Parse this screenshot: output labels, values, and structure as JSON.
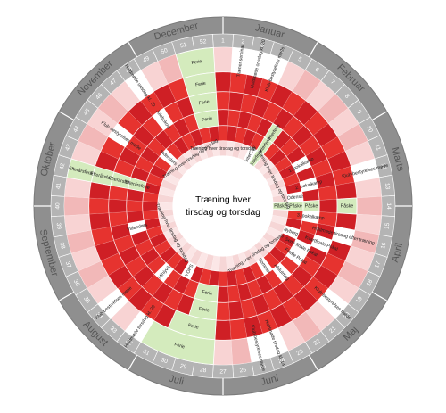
{
  "center_text": [
    "Træning hver",
    "tirsdag og torsdag"
  ],
  "months": [
    "Januar",
    "Februar",
    "Marts",
    "April",
    "Maj",
    "Juni",
    "Juli",
    "August",
    "September",
    "Oktober",
    "November",
    "December"
  ],
  "weeks": [
    "1",
    "2",
    "3",
    "4",
    "5",
    "6",
    "7",
    "8",
    "9",
    "10",
    "11",
    "12",
    "13",
    "14",
    "15",
    "16",
    "17",
    "18",
    "19",
    "20",
    "21",
    "22",
    "23",
    "24",
    "25",
    "26",
    "27",
    "28",
    "29",
    "30",
    "31",
    "32",
    "33",
    "34",
    "35",
    "36",
    "37",
    "38",
    "39",
    "40",
    "41",
    "42",
    "43",
    "44",
    "45",
    "46",
    "47",
    "48",
    "49",
    "50",
    "51",
    "52"
  ],
  "colors": {
    "outer_ring": "#8f8f8f",
    "week_ring": "#b4b4b4",
    "red": "#e6332f",
    "red_dark": "#cf1f25",
    "pink": "#f2b8b8",
    "pink_light": "#f8d3d3",
    "holiday_green": "#d4ebbd",
    "white": "#ffffff"
  },
  "events": [
    {
      "ring": 1,
      "start": 51,
      "end": 52,
      "fill": "#d4ebbd",
      "text": "Ferie"
    },
    {
      "ring": 2,
      "start": 51,
      "end": 52,
      "fill": "#d4ebbd",
      "text": "Ferie"
    },
    {
      "ring": 3,
      "start": 51,
      "end": 52,
      "fill": "#d4ebbd",
      "text": "Ferie"
    },
    {
      "ring": 4,
      "start": 51,
      "end": 52,
      "fill": "#d4ebbd",
      "text": "Ferie"
    },
    {
      "ring": 1,
      "start": 2,
      "end": 2,
      "fill": "#ffffff",
      "text": "Træner seminar"
    },
    {
      "ring": 1,
      "start": 3,
      "end": 3,
      "fill": "#ffffff",
      "text": "Holdmøde onsdag kl. 20"
    },
    {
      "ring": 1,
      "start": 4,
      "end": 4,
      "fill": "#ffffff",
      "text": "Klub-bestyrelses møde"
    },
    {
      "ring": 1,
      "start": 48,
      "end": 48,
      "fill": "#ffffff",
      "text": "Holdmøde onsdag kl. 20"
    },
    {
      "ring": 3,
      "start": 48,
      "end": 48,
      "fill": "#ffffff",
      "text": "Julefrokost"
    },
    {
      "ring": 5,
      "start": 46,
      "end": 46,
      "fill": "#ffffff",
      "text": "Indendørs"
    },
    {
      "ring": 2,
      "start": 45,
      "end": 45,
      "fill": "#ffffff",
      "text": "Klub-bestyrelses møde"
    },
    {
      "ring": 4,
      "start": 6,
      "end": 6,
      "fill": "#d4ebbd",
      "text": "Vinterferie"
    },
    {
      "ring": 5,
      "start": 6,
      "end": 6,
      "fill": "#d4ebbd",
      "text": "Vinterferie"
    },
    {
      "ring": 6,
      "start": 6,
      "end": 6,
      "fill": "#d4ebbd",
      "text": "Vinterferie"
    },
    {
      "ring": 6,
      "start": 5,
      "end": 5,
      "fill": "#ffffff",
      "text": "VinterCup"
    },
    {
      "ring": 4,
      "start": 10,
      "end": 10,
      "fill": "#ffffff",
      "text": "1. pokalkamp"
    },
    {
      "ring": 4,
      "start": 12,
      "end": 12,
      "fill": "#ffffff",
      "text": "2. pokalkamp"
    },
    {
      "ring": 1,
      "start": 12,
      "end": 12,
      "fill": "#ffffff",
      "text": "Klub-bestyrelses møde"
    },
    {
      "ring": 5,
      "start": 13,
      "end": 13,
      "fill": "#ffffff",
      "text": "Odense"
    },
    {
      "ring": 2,
      "start": 14,
      "end": 14,
      "fill": "#d4ebbd",
      "text": "Påske"
    },
    {
      "ring": 4,
      "start": 14,
      "end": 14,
      "fill": "#d4ebbd",
      "text": "Påske"
    },
    {
      "ring": 5,
      "start": 14,
      "end": 14,
      "fill": "#d4ebbd",
      "text": "Påske"
    },
    {
      "ring": 6,
      "start": 14,
      "end": 14,
      "fill": "#d4ebbd",
      "text": "Påske"
    },
    {
      "ring": 4,
      "start": 15,
      "end": 15,
      "fill": "#ffffff",
      "text": "3. pokalkamp"
    },
    {
      "ring": 2,
      "start": 16,
      "end": 16,
      "fill": "#ffffff",
      "text": "Holdmøde tirsdag efter træning"
    },
    {
      "ring": 3,
      "start": 17,
      "end": 17,
      "fill": "#ffffff",
      "text": "Kvartfinale Pokal"
    },
    {
      "ring": 5,
      "start": 17,
      "end": 17,
      "fill": "#ffffff",
      "text": "Nyborg"
    },
    {
      "ring": 4,
      "start": 18,
      "end": 18,
      "fill": "#ffffff",
      "text": "Semi-finale Pokal"
    },
    {
      "ring": 4,
      "start": 19,
      "end": 19,
      "fill": "#ffffff",
      "text": "Finale Pokal"
    },
    {
      "ring": 1,
      "start": 20,
      "end": 20,
      "fill": "#ffffff",
      "text": "Klub-bestyrelses møde"
    },
    {
      "ring": 4,
      "start": 21,
      "end": 21,
      "fill": "#ffffff",
      "text": "Afslutning"
    },
    {
      "ring": 5,
      "start": 22,
      "end": 22,
      "fill": "#ffffff",
      "text": "Sommer"
    },
    {
      "ring": 1,
      "start": 24,
      "end": 24,
      "fill": "#ffffff",
      "text": "Holdmøde tirsdag kl. 14"
    },
    {
      "ring": 1,
      "start": 25,
      "end": 25,
      "fill": "#ffffff",
      "text": "Klub-bestyrelses møde"
    },
    {
      "ring": 1,
      "start": 28,
      "end": 31,
      "fill": "#d4ebbd",
      "text": "Ferie"
    },
    {
      "ring": 2,
      "start": 28,
      "end": 30,
      "fill": "#d4ebbd",
      "text": "Ferie"
    },
    {
      "ring": 3,
      "start": 28,
      "end": 29,
      "fill": "#d4ebbd",
      "text": "Ferie"
    },
    {
      "ring": 4,
      "start": 28,
      "end": 29,
      "fill": "#d4ebbd",
      "text": "Ferie"
    },
    {
      "ring": 5,
      "start": 31,
      "end": 31,
      "fill": "#ffffff",
      "text": "YOPS"
    },
    {
      "ring": 4,
      "start": 33,
      "end": 33,
      "fill": "#ffffff",
      "text": "Miniyvik"
    },
    {
      "ring": 1,
      "start": 32,
      "end": 32,
      "fill": "#ffffff",
      "text": "Holdmøde torsdag kl. 20"
    },
    {
      "ring": 1,
      "start": 34,
      "end": 34,
      "fill": "#ffffff",
      "text": "Klub-bestyrelses møde"
    },
    {
      "ring": 4,
      "start": 38,
      "end": 38,
      "fill": "#ffffff",
      "text": "Indendørs"
    },
    {
      "ring": 1,
      "start": 42,
      "end": 42,
      "fill": "#d4ebbd",
      "text": "Efterårsferie"
    },
    {
      "ring": 2,
      "start": 42,
      "end": 42,
      "fill": "#d4ebbd",
      "text": "Efterårsferie"
    },
    {
      "ring": 3,
      "start": 42,
      "end": 42,
      "fill": "#d4ebbd",
      "text": "Efterårsferie"
    },
    {
      "ring": 4,
      "start": 42,
      "end": 42,
      "fill": "#d4ebbd",
      "text": "Efterårsferie"
    }
  ],
  "circular_texts": [
    {
      "text": "Træning hver tirsdag og torsdag",
      "ring": 6,
      "at": 1
    },
    {
      "text": "Træning hver tirsdag og torsdag",
      "ring": 6,
      "at": 10
    },
    {
      "text": "Træning hver tirsdag og torsdag",
      "ring": 6,
      "at": 22
    },
    {
      "text": "Træning hver tirsdag og torsdag",
      "ring": 6,
      "at": 36
    },
    {
      "text": "Træning hver tirsdag og torsdag",
      "ring": 6,
      "at": 48
    }
  ]
}
